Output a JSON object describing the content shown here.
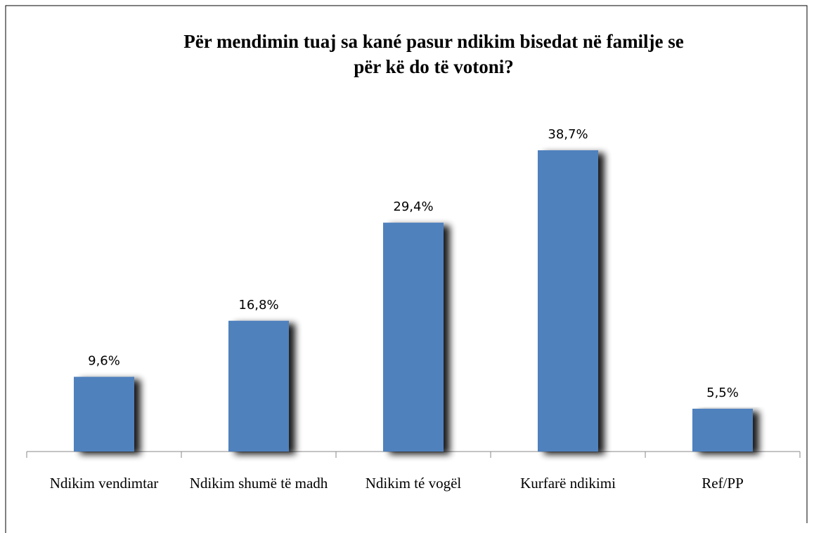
{
  "chart_data": {
    "type": "bar",
    "title": "Për mendimin tuaj sa kané pasur ndikim bisedat në familje se për kë do të votoni?",
    "categories": [
      "Ndikim vendimtar",
      "Ndikim shumë të madh",
      "Ndikim té vogël",
      "Kurfarë ndikimi",
      "Ref/PP"
    ],
    "values": [
      9.6,
      16.8,
      29.4,
      38.7,
      5.5
    ],
    "value_labels": [
      "9,6%",
      "16,8%",
      "29,4%",
      "38,7%",
      "5,5%"
    ],
    "color": "#4f81bd"
  }
}
